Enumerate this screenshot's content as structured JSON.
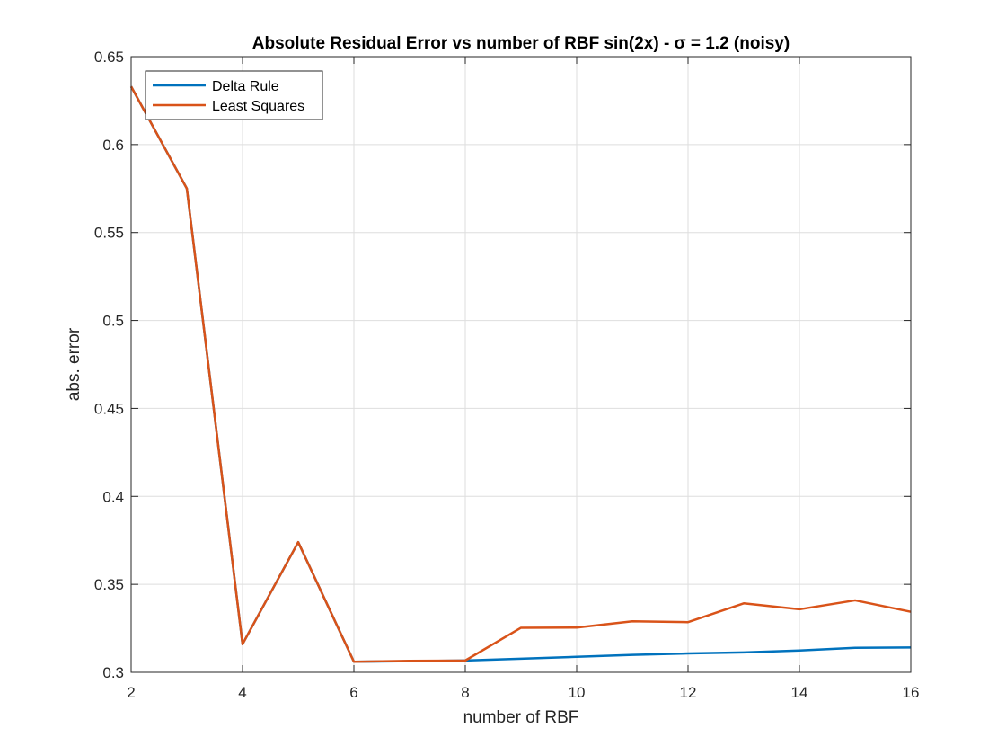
{
  "chart_data": {
    "type": "line",
    "title": "Absolute Residual Error vs number of RBF sin(2x) - σ = 1.2 (noisy)",
    "xlabel": "number of RBF",
    "ylabel": "abs. error",
    "xlim": [
      2,
      16
    ],
    "ylim": [
      0.3,
      0.65
    ],
    "xticks": [
      2,
      4,
      6,
      8,
      10,
      12,
      14,
      16
    ],
    "xtick_labels": [
      "2",
      "4",
      "6",
      "8",
      "10",
      "12",
      "14",
      "16"
    ],
    "yticks": [
      0.3,
      0.35,
      0.4,
      0.45,
      0.5,
      0.55,
      0.6,
      0.65
    ],
    "ytick_labels": [
      "0.3",
      "0.35",
      "0.4",
      "0.45",
      "0.5",
      "0.55",
      "0.6",
      "0.65"
    ],
    "grid": true,
    "legend_position": "top-left",
    "x": [
      2,
      3,
      4,
      5,
      6,
      7,
      8,
      9,
      10,
      11,
      12,
      13,
      14,
      15,
      16
    ],
    "series": [
      {
        "name": "Delta Rule",
        "color": "#0072BD",
        "values": [
          0.633,
          0.575,
          0.316,
          0.374,
          0.306,
          0.3063,
          0.3067,
          0.3077,
          0.3088,
          0.3099,
          0.3107,
          0.3113,
          0.3124,
          0.3139,
          0.3141
        ]
      },
      {
        "name": "Least Squares",
        "color": "#D95319",
        "values": [
          0.633,
          0.575,
          0.316,
          0.374,
          0.306,
          0.3065,
          0.3067,
          0.3253,
          0.3254,
          0.329,
          0.3285,
          0.3392,
          0.3358,
          0.3409,
          0.3344
        ]
      }
    ]
  }
}
